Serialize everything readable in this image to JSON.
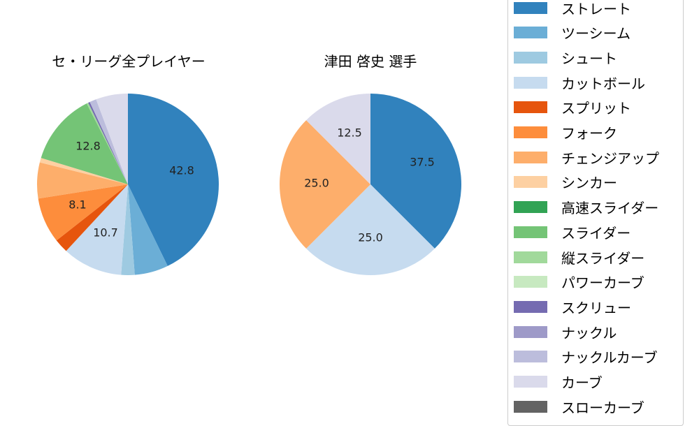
{
  "chart_data": [
    {
      "type": "pie",
      "title": "セ・リーグ全プレイヤー",
      "categories": [
        "ストレート",
        "ツーシーム",
        "シュート",
        "カットボール",
        "スプリット",
        "フォーク",
        "チェンジアップ",
        "シンカー",
        "スライダー",
        "縦スライダー",
        "スクリュー",
        "ナックルカーブ",
        "カーブ"
      ],
      "values": [
        42.8,
        6.0,
        2.4,
        10.7,
        2.5,
        8.1,
        6.4,
        0.8,
        12.8,
        0.3,
        0.3,
        1.2,
        5.7
      ],
      "labels_shown": [
        "42.8",
        "10.7",
        "8.1",
        "12.8"
      ]
    },
    {
      "type": "pie",
      "title": "津田 啓史  選手",
      "categories": [
        "ストレート",
        "カットボール",
        "チェンジアップ",
        "カーブ"
      ],
      "values": [
        37.5,
        25.0,
        25.0,
        12.5
      ],
      "labels_shown": [
        "37.5",
        "25.0",
        "25.0",
        "12.5"
      ]
    }
  ],
  "titles": {
    "left": "セ・リーグ全プレイヤー",
    "right": "津田 啓史  選手"
  },
  "pie_labels": {
    "left": [
      "42.8",
      "10.7",
      "8.1",
      "12.8"
    ],
    "right": [
      "37.5",
      "25.0",
      "25.0",
      "12.5"
    ]
  },
  "legend": [
    {
      "label": "ストレート",
      "color": "#3182bd"
    },
    {
      "label": "ツーシーム",
      "color": "#6baed6"
    },
    {
      "label": "シュート",
      "color": "#9ecae1"
    },
    {
      "label": "カットボール",
      "color": "#c6dbef"
    },
    {
      "label": "スプリット",
      "color": "#e6550d"
    },
    {
      "label": "フォーク",
      "color": "#fd8d3c"
    },
    {
      "label": "チェンジアップ",
      "color": "#fdae6b"
    },
    {
      "label": "シンカー",
      "color": "#fdd0a2"
    },
    {
      "label": "高速スライダー",
      "color": "#31a354"
    },
    {
      "label": "スライダー",
      "color": "#74c476"
    },
    {
      "label": "縦スライダー",
      "color": "#a1d99b"
    },
    {
      "label": "パワーカーブ",
      "color": "#c7e9c0"
    },
    {
      "label": "スクリュー",
      "color": "#756bb1"
    },
    {
      "label": "ナックル",
      "color": "#9e9ac8"
    },
    {
      "label": "ナックルカーブ",
      "color": "#bcbddc"
    },
    {
      "label": "カーブ",
      "color": "#dadaeb"
    },
    {
      "label": "スローカーブ",
      "color": "#636363"
    }
  ]
}
